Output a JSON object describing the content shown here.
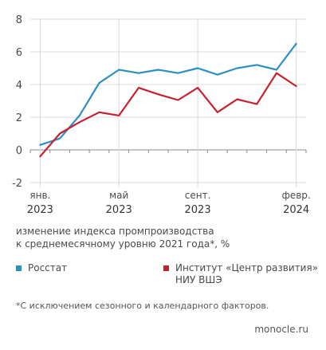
{
  "chart_data": {
    "type": "line",
    "x": [
      "2023-01",
      "2023-02",
      "2023-03",
      "2023-04",
      "2023-05",
      "2023-06",
      "2023-07",
      "2023-08",
      "2023-09",
      "2023-10",
      "2023-11",
      "2023-12",
      "2024-01",
      "2024-02"
    ],
    "x_tick_labels": [
      {
        "index": 0,
        "month": "янв.",
        "year": "2023"
      },
      {
        "index": 4,
        "month": "май",
        "year": "2023"
      },
      {
        "index": 8,
        "month": "сент.",
        "year": "2023"
      },
      {
        "index": 13,
        "month": "февр.",
        "year": "2024"
      }
    ],
    "y_ticks": [
      "8",
      "6",
      "4",
      "2",
      "0",
      "-2"
    ],
    "ylim": [
      -2,
      8
    ],
    "grid": "horizontal",
    "series": [
      {
        "name": "Росстат",
        "color": "#2e8fc1",
        "values": [
          0.3,
          0.7,
          2.1,
          4.1,
          4.9,
          4.7,
          4.9,
          4.7,
          5.0,
          4.6,
          5.0,
          5.2,
          4.9,
          6.5
        ]
      },
      {
        "name": "Институт «Центр развития» НИУ ВШЭ",
        "color": "#c8202f",
        "values": [
          -0.4,
          1.0,
          1.7,
          2.3,
          2.1,
          3.8,
          3.4,
          3.05,
          3.8,
          2.3,
          3.1,
          2.8,
          4.7,
          3.9
        ]
      }
    ]
  },
  "subtitle_line1": "изменение индекса промпроизводства",
  "subtitle_line2": "к среднемесячному уровню 2021 года*, %",
  "legend": [
    {
      "label_line1": "Росстат",
      "label_line2": "",
      "color": "#2e8fc1"
    },
    {
      "label_line1": "Институт «Центр развития»",
      "label_line2": "НИУ ВШЭ",
      "color": "#c8202f"
    }
  ],
  "footnote": "*С исключением сезонного и календарного факторов.",
  "source": "monocle.ru"
}
